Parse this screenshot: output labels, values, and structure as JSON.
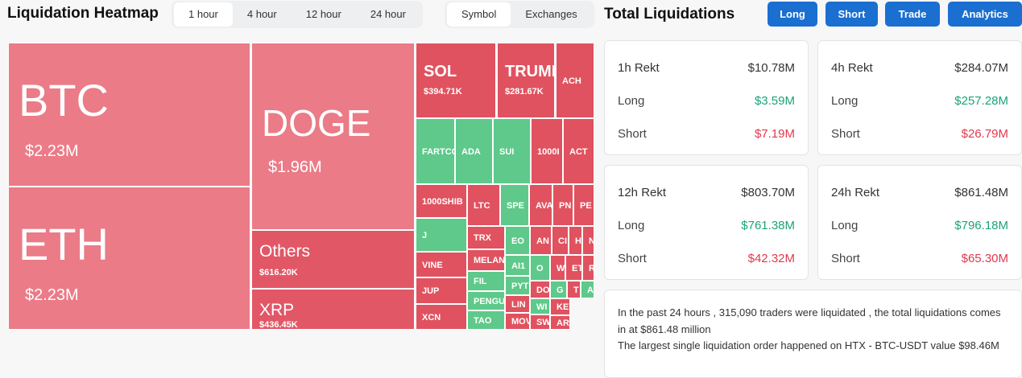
{
  "header": {
    "title": "Liquidation Heatmap",
    "time_tabs": [
      "1 hour",
      "4 hour",
      "12 hour",
      "24 hour"
    ],
    "selected_time_tab": 0,
    "group_tabs": [
      "Symbol",
      "Exchanges"
    ],
    "selected_group_tab": 0
  },
  "heatmap": {
    "cells": [
      {
        "label": "BTC",
        "value": "$2.23M",
        "color": "#ea7b87"
      },
      {
        "label": "ETH",
        "value": "$2.23M",
        "color": "#ea7b87"
      },
      {
        "label": "DOGE",
        "value": "$1.96M",
        "color": "#ea7b87"
      },
      {
        "label": "Others",
        "value": "$616.20K",
        "color": "#e25766"
      },
      {
        "label": "XRP",
        "value": "$436.45K",
        "color": "#e25766"
      },
      {
        "label": "SOL",
        "value": "$394.71K",
        "color": "#e0525f"
      },
      {
        "label": "TRUMI",
        "value": "$281.67K",
        "color": "#e0525f"
      },
      {
        "label": "ACH",
        "color": "#e0525f"
      },
      {
        "label": "FARTCO",
        "color": "#5ec98a"
      },
      {
        "label": "ADA",
        "color": "#5ec98a"
      },
      {
        "label": "SUI",
        "color": "#5ec98a"
      },
      {
        "label": "1000I",
        "color": "#e0525f"
      },
      {
        "label": "ACT",
        "color": "#e0525f"
      },
      {
        "label": "1000SHIB",
        "color": "#e0525f"
      },
      {
        "label": "J",
        "color": "#5ec98a"
      },
      {
        "label": "VINE",
        "color": "#e0525f"
      },
      {
        "label": "JUP",
        "color": "#e0525f"
      },
      {
        "label": "XCN",
        "color": "#e0525f"
      },
      {
        "label": "LTC",
        "color": "#e0525f"
      },
      {
        "label": "SPE",
        "color": "#5ec98a"
      },
      {
        "label": "AVA",
        "color": "#e0525f"
      },
      {
        "label": "PN",
        "color": "#e0525f"
      },
      {
        "label": "PE",
        "color": "#e0525f"
      },
      {
        "label": "TRX",
        "color": "#e0525f"
      },
      {
        "label": "MELAN",
        "color": "#e0525f"
      },
      {
        "label": "FIL",
        "color": "#5ec98a"
      },
      {
        "label": "PENGU",
        "color": "#5ec98a"
      },
      {
        "label": "TAO",
        "color": "#5ec98a"
      },
      {
        "label": "EO",
        "color": "#5ec98a"
      },
      {
        "label": "AN",
        "color": "#e0525f"
      },
      {
        "label": "CI",
        "color": "#e0525f"
      },
      {
        "label": "H",
        "color": "#e0525f"
      },
      {
        "label": "N",
        "color": "#e0525f"
      },
      {
        "label": "AI1",
        "color": "#5ec98a"
      },
      {
        "label": "PYT",
        "color": "#5ec98a"
      },
      {
        "label": "LIN",
        "color": "#e0525f"
      },
      {
        "label": "MOV",
        "color": "#e0525f"
      },
      {
        "label": "O",
        "color": "#5ec98a"
      },
      {
        "label": "W",
        "color": "#e0525f"
      },
      {
        "label": "ET",
        "color": "#e0525f"
      },
      {
        "label": "R",
        "color": "#e0525f"
      },
      {
        "label": "DO",
        "color": "#e0525f"
      },
      {
        "label": "G",
        "color": "#5ec98a"
      },
      {
        "label": "T",
        "color": "#e0525f"
      },
      {
        "label": "A",
        "color": "#5ec98a"
      },
      {
        "label": "WI",
        "color": "#5ec98a"
      },
      {
        "label": "KEY",
        "color": "#e0525f"
      },
      {
        "label": "SW",
        "color": "#e0525f"
      },
      {
        "label": "ARI",
        "color": "#e0525f"
      }
    ]
  },
  "totals": {
    "title": "Total Liquidations",
    "buttons": [
      "Long",
      "Short",
      "Trade",
      "Analytics"
    ],
    "cards": [
      {
        "title": "1h Rekt",
        "total": "$10.78M",
        "rows": [
          {
            "label": "Long",
            "value": "$3.59M"
          },
          {
            "label": "Short",
            "value": "$7.19M"
          }
        ]
      },
      {
        "title": "4h Rekt",
        "total": "$284.07M",
        "rows": [
          {
            "label": "Long",
            "value": "$257.28M"
          },
          {
            "label": "Short",
            "value": "$26.79M"
          }
        ]
      },
      {
        "title": "12h Rekt",
        "total": "$803.70M",
        "rows": [
          {
            "label": "Long",
            "value": "$761.38M"
          },
          {
            "label": "Short",
            "value": "$42.32M"
          }
        ]
      },
      {
        "title": "24h Rekt",
        "total": "$861.48M",
        "rows": [
          {
            "label": "Long",
            "value": "$796.18M"
          },
          {
            "label": "Short",
            "value": "$65.30M"
          }
        ]
      }
    ],
    "note": [
      "In the past 24 hours , 315,090 traders were liquidated , the total liquidations comes in at $861.48 million",
      "The largest single liquidation order happened on HTX - BTC-USDT value $98.46M"
    ]
  }
}
